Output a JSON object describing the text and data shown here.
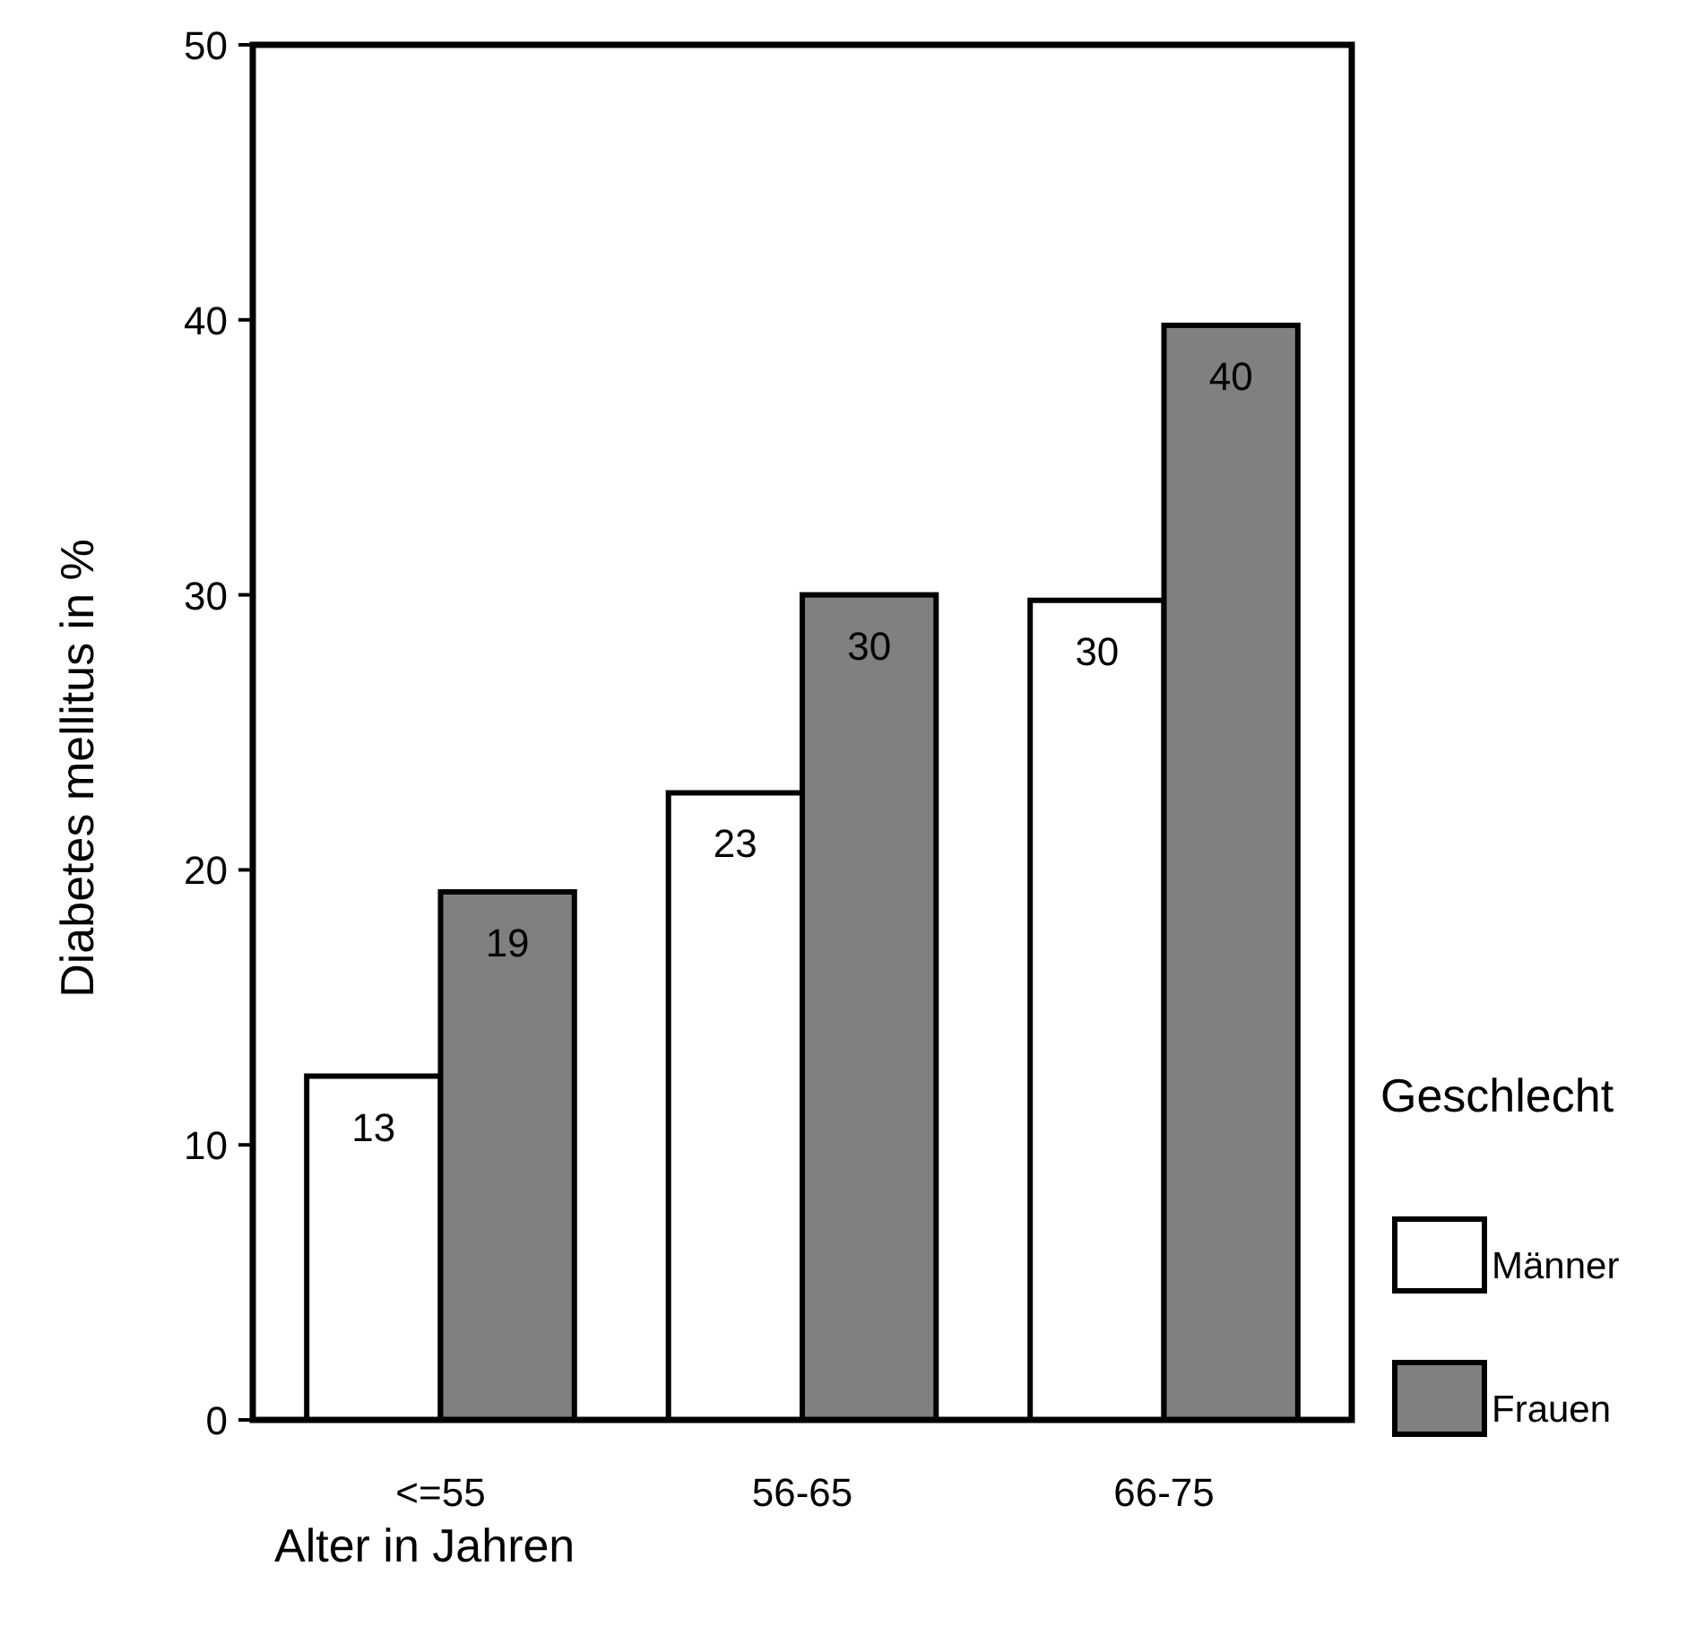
{
  "chart_data": {
    "type": "bar",
    "xlabel": "Alter in Jahren",
    "ylabel": "Diabetes mellitus in %",
    "legend_title": "Geschlecht",
    "categories": [
      "<=55",
      "56-65",
      "66-75"
    ],
    "series": [
      {
        "name": "Männer",
        "color": "#ffffff",
        "values": [
          12.5,
          22.8,
          29.8
        ],
        "value_labels": [
          "13",
          "23",
          "30"
        ]
      },
      {
        "name": "Frauen",
        "color": "#808080",
        "values": [
          19.2,
          30,
          39.8
        ],
        "value_labels": [
          "19",
          "30",
          "40"
        ]
      }
    ],
    "ylim": [
      0,
      50
    ],
    "yticks": [
      0,
      10,
      20,
      30,
      40,
      50
    ],
    "grid": false,
    "legend": "right"
  }
}
